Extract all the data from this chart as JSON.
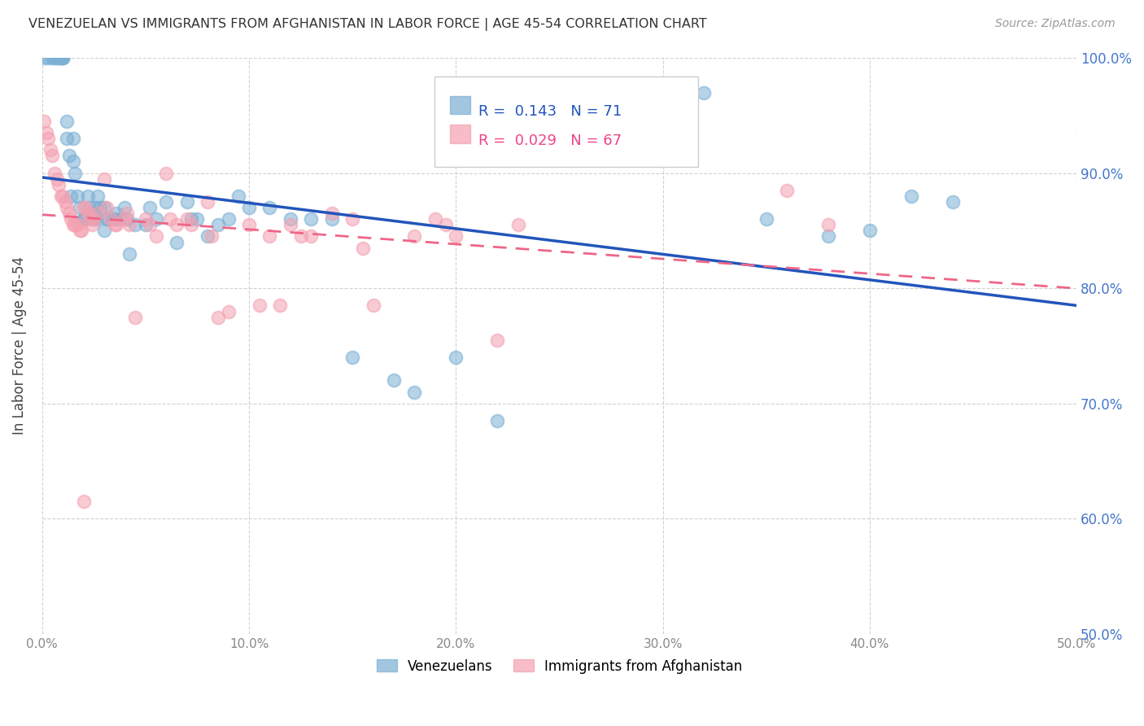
{
  "title": "VENEZUELAN VS IMMIGRANTS FROM AFGHANISTAN IN LABOR FORCE | AGE 45-54 CORRELATION CHART",
  "source": "Source: ZipAtlas.com",
  "ylabel": "In Labor Force | Age 45-54",
  "xlim": [
    0.0,
    0.5
  ],
  "ylim": [
    0.5,
    1.0
  ],
  "xticks": [
    0.0,
    0.1,
    0.2,
    0.3,
    0.4,
    0.5
  ],
  "yticks": [
    0.5,
    0.6,
    0.7,
    0.8,
    0.9,
    1.0
  ],
  "xtick_labels": [
    "0.0%",
    "10.0%",
    "20.0%",
    "30.0%",
    "40.0%",
    "50.0%"
  ],
  "ytick_labels": [
    "50.0%",
    "60.0%",
    "70.0%",
    "80.0%",
    "90.0%",
    "100.0%"
  ],
  "blue_R": 0.143,
  "blue_N": 71,
  "pink_R": 0.029,
  "pink_N": 67,
  "blue_color": "#7BAFD4",
  "pink_color": "#F4A0B0",
  "trend_blue_color": "#2255BB",
  "trend_pink_color": "#EE6688",
  "legend_label_blue": "Venezuelans",
  "legend_label_pink": "Immigrants from Afghanistan",
  "blue_x": [
    0.001,
    0.003,
    0.005,
    0.006,
    0.007,
    0.008,
    0.009,
    0.01,
    0.01,
    0.01,
    0.012,
    0.012,
    0.013,
    0.014,
    0.015,
    0.015,
    0.016,
    0.017,
    0.018,
    0.02,
    0.02,
    0.021,
    0.022,
    0.023,
    0.024,
    0.025,
    0.026,
    0.027,
    0.028,
    0.03,
    0.031,
    0.032,
    0.034,
    0.035,
    0.036,
    0.038,
    0.04,
    0.041,
    0.042,
    0.045,
    0.05,
    0.052,
    0.055,
    0.06,
    0.065,
    0.07,
    0.072,
    0.075,
    0.08,
    0.085,
    0.09,
    0.095,
    0.1,
    0.11,
    0.12,
    0.13,
    0.14,
    0.15,
    0.17,
    0.18,
    0.2,
    0.22,
    0.025,
    0.026,
    0.03,
    0.32,
    0.35,
    0.38,
    0.4,
    0.42,
    0.44
  ],
  "blue_y": [
    1.0,
    1.0,
    1.0,
    1.0,
    1.0,
    1.0,
    1.0,
    1.0,
    1.0,
    1.0,
    0.945,
    0.93,
    0.915,
    0.88,
    0.93,
    0.91,
    0.9,
    0.88,
    0.87,
    0.86,
    0.86,
    0.86,
    0.88,
    0.87,
    0.865,
    0.86,
    0.87,
    0.88,
    0.87,
    0.87,
    0.86,
    0.86,
    0.86,
    0.86,
    0.865,
    0.86,
    0.87,
    0.86,
    0.83,
    0.855,
    0.855,
    0.87,
    0.86,
    0.875,
    0.84,
    0.875,
    0.86,
    0.86,
    0.845,
    0.855,
    0.86,
    0.88,
    0.87,
    0.87,
    0.86,
    0.86,
    0.86,
    0.74,
    0.72,
    0.71,
    0.74,
    0.685,
    0.865,
    0.86,
    0.85,
    0.97,
    0.86,
    0.845,
    0.85,
    0.88,
    0.875
  ],
  "pink_x": [
    0.001,
    0.002,
    0.003,
    0.004,
    0.005,
    0.006,
    0.007,
    0.008,
    0.009,
    0.01,
    0.011,
    0.012,
    0.013,
    0.014,
    0.015,
    0.016,
    0.017,
    0.018,
    0.019,
    0.02,
    0.021,
    0.022,
    0.023,
    0.024,
    0.025,
    0.027,
    0.03,
    0.031,
    0.033,
    0.035,
    0.036,
    0.04,
    0.041,
    0.042,
    0.045,
    0.05,
    0.052,
    0.055,
    0.06,
    0.062,
    0.065,
    0.07,
    0.072,
    0.08,
    0.082,
    0.085,
    0.09,
    0.1,
    0.105,
    0.11,
    0.115,
    0.12,
    0.125,
    0.13,
    0.14,
    0.15,
    0.155,
    0.16,
    0.18,
    0.19,
    0.195,
    0.2,
    0.22,
    0.23,
    0.36,
    0.38,
    0.02
  ],
  "pink_y": [
    0.945,
    0.935,
    0.93,
    0.92,
    0.915,
    0.9,
    0.895,
    0.89,
    0.88,
    0.88,
    0.875,
    0.87,
    0.865,
    0.86,
    0.855,
    0.855,
    0.855,
    0.85,
    0.85,
    0.87,
    0.87,
    0.865,
    0.86,
    0.855,
    0.86,
    0.865,
    0.895,
    0.87,
    0.86,
    0.855,
    0.855,
    0.86,
    0.865,
    0.855,
    0.775,
    0.86,
    0.855,
    0.845,
    0.9,
    0.86,
    0.855,
    0.86,
    0.855,
    0.875,
    0.845,
    0.775,
    0.78,
    0.855,
    0.785,
    0.845,
    0.785,
    0.855,
    0.845,
    0.845,
    0.865,
    0.86,
    0.835,
    0.785,
    0.845,
    0.86,
    0.855,
    0.845,
    0.755,
    0.855,
    0.885,
    0.855,
    0.615
  ]
}
